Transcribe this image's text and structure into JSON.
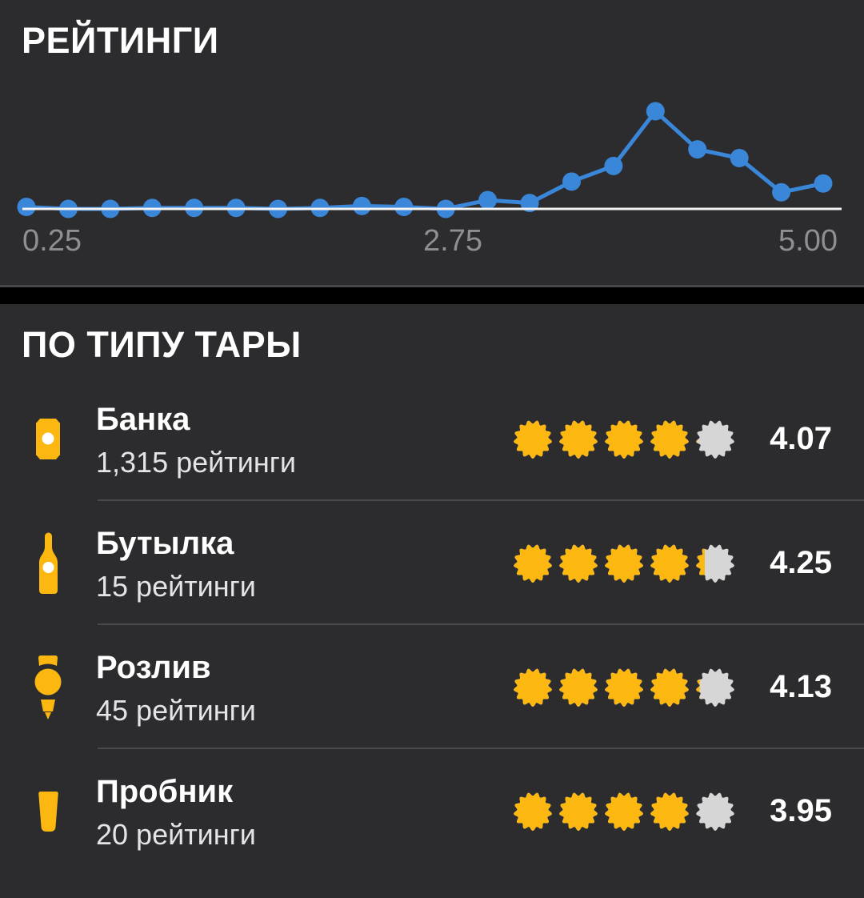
{
  "colors": {
    "background": "#2c2c2e",
    "separator": "#000000",
    "chart_line": "#3a86d8",
    "chart_baseline": "#f2f2f2",
    "axis_label": "#8e8e93",
    "cap_gold": "#fcb811",
    "cap_gray": "#d6d6d6",
    "divider": "#4a4a4c"
  },
  "ratings_section": {
    "title": "РЕЙТИНГИ"
  },
  "chart_data": {
    "type": "line",
    "title": "РЕЙТИНГИ",
    "x": [
      0.25,
      0.5,
      0.75,
      1.0,
      1.25,
      1.5,
      1.75,
      2.0,
      2.25,
      2.5,
      2.75,
      3.0,
      3.25,
      3.5,
      3.75,
      4.0,
      4.25,
      4.5,
      4.75,
      5.0
    ],
    "values": [
      2,
      0,
      0,
      1,
      1,
      1,
      0,
      1,
      3,
      2,
      0,
      9,
      6,
      28,
      44,
      100,
      61,
      52,
      17,
      26
    ],
    "values_unit": "relative frequency, % of max (y-axis unlabeled)",
    "xlabel": "",
    "ylabel": "",
    "xlim": [
      0.25,
      5.0
    ],
    "ylim": [
      0,
      100
    ],
    "grid": false,
    "legend": "none",
    "xtick_labels": [
      "0.25",
      "2.75",
      "5.00"
    ],
    "line_color": "#3a86d8",
    "marker": "circle"
  },
  "container_section": {
    "title": "ПО ТИПУ ТАРЫ",
    "rating_scale_max": 5,
    "rows": [
      {
        "name": "Банка",
        "count": "1,315 рейтинги",
        "rating": "4.07",
        "icon": "can-icon"
      },
      {
        "name": "Бутылка",
        "count": "15 рейтинги",
        "rating": "4.25",
        "icon": "bottle-icon"
      },
      {
        "name": "Розлив",
        "count": "45 рейтинги",
        "rating": "4.13",
        "icon": "tap-icon"
      },
      {
        "name": "Пробник",
        "count": "20 рейтинги",
        "rating": "3.95",
        "icon": "taster-icon"
      }
    ]
  }
}
